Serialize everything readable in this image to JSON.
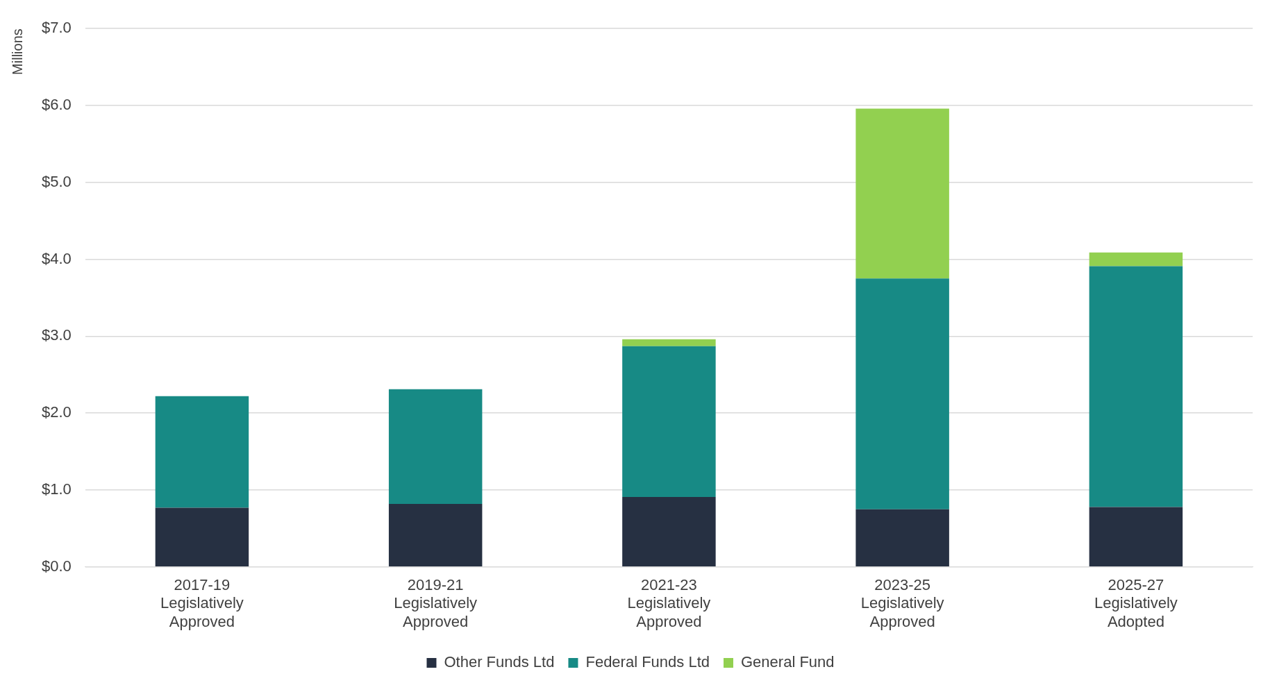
{
  "chart_data": {
    "type": "bar",
    "stacked": true,
    "ylabel": "Millions",
    "categories": [
      "2017-19 Legislatively Approved",
      "2019-21 Legislatively Approved",
      "2021-23 Legislatively Approved",
      "2023-25 Legislatively Approved",
      "2025-27 Legislatively Adopted"
    ],
    "series": [
      {
        "name": "Other Funds Ltd",
        "color": "#263042",
        "values": [
          0.77,
          0.82,
          0.91,
          0.75,
          0.78
        ]
      },
      {
        "name": "Federal Funds Ltd",
        "color": "#178a85",
        "values": [
          1.45,
          1.49,
          1.96,
          3.0,
          3.13
        ]
      },
      {
        "name": "General Fund",
        "color": "#92d050",
        "values": [
          null,
          null,
          0.09,
          2.21,
          0.18
        ]
      }
    ],
    "ylim": [
      0,
      7
    ],
    "yticks": [
      {
        "value": 0,
        "label": "$0.0"
      },
      {
        "value": 1,
        "label": "$1.0"
      },
      {
        "value": 2,
        "label": "$2.0"
      },
      {
        "value": 3,
        "label": "$3.0"
      },
      {
        "value": 4,
        "label": "$4.0"
      },
      {
        "value": 5,
        "label": "$5.0"
      },
      {
        "value": 6,
        "label": "$6.0"
      },
      {
        "value": 7,
        "label": "$7.0"
      }
    ],
    "grid": "y",
    "legend": "bottom"
  }
}
